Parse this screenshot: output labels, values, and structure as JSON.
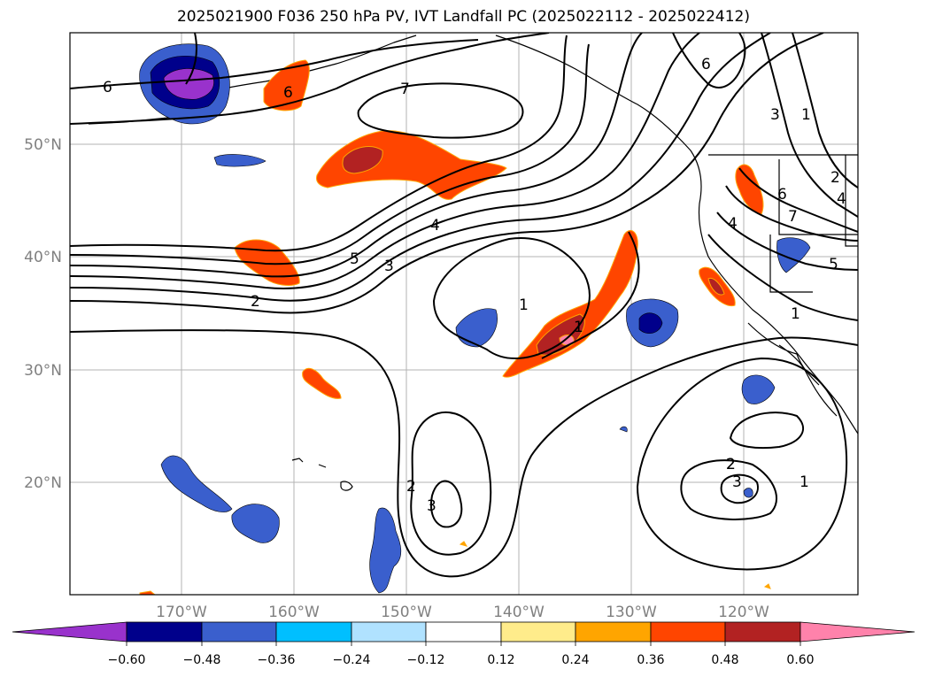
{
  "title": "2025021900 F036 250 hPa PV, IVT Landfall PC (2025022112 - 2025022412)",
  "lat_ticks": [
    "50°N",
    "40°N",
    "30°N",
    "20°N"
  ],
  "lon_ticks": [
    "170°W",
    "160°W",
    "150°W",
    "140°W",
    "130°W",
    "120°W"
  ],
  "colorbar": {
    "colors": [
      "#9932cc",
      "#00008b",
      "#3a5fcd",
      "#00bfff",
      "#b0e2ff",
      "#ffffff",
      "#ffec8b",
      "#ffa500",
      "#ff4500",
      "#b22222",
      "#ff82ab"
    ],
    "labels": [
      "−0.60",
      "−0.48",
      "−0.36",
      "−0.24",
      "−0.12",
      "0.12",
      "0.24",
      "0.36",
      "0.48",
      "0.60"
    ]
  },
  "contour_labels": [
    "6",
    "6",
    "7",
    "6",
    "3",
    "1",
    "2",
    "4",
    "6",
    "7",
    "4",
    "5",
    "2",
    "5",
    "3",
    "4",
    "1",
    "1",
    "1",
    "2",
    "2",
    "3",
    "2",
    "3",
    "1"
  ]
}
